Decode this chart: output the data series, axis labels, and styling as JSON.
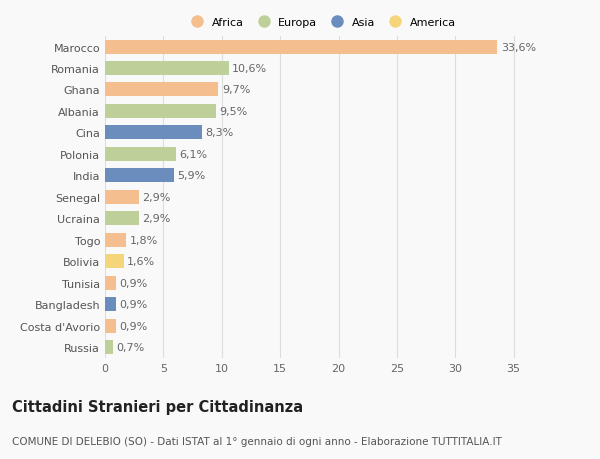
{
  "countries": [
    "Marocco",
    "Romania",
    "Ghana",
    "Albania",
    "Cina",
    "Polonia",
    "India",
    "Senegal",
    "Ucraina",
    "Togo",
    "Bolivia",
    "Tunisia",
    "Bangladesh",
    "Costa d'Avorio",
    "Russia"
  ],
  "values": [
    33.6,
    10.6,
    9.7,
    9.5,
    8.3,
    6.1,
    5.9,
    2.9,
    2.9,
    1.8,
    1.6,
    0.9,
    0.9,
    0.9,
    0.7
  ],
  "labels": [
    "33,6%",
    "10,6%",
    "9,7%",
    "9,5%",
    "8,3%",
    "6,1%",
    "5,9%",
    "2,9%",
    "2,9%",
    "1,8%",
    "1,6%",
    "0,9%",
    "0,9%",
    "0,9%",
    "0,7%"
  ],
  "continents": [
    "Africa",
    "Europa",
    "Africa",
    "Europa",
    "Asia",
    "Europa",
    "Asia",
    "Africa",
    "Europa",
    "Africa",
    "America",
    "Africa",
    "Asia",
    "Africa",
    "Europa"
  ],
  "colors": {
    "Africa": "#F5BE8E",
    "Europa": "#BECF9A",
    "Asia": "#6B8DBE",
    "America": "#F5D57A"
  },
  "legend_order": [
    "Africa",
    "Europa",
    "Asia",
    "America"
  ],
  "legend_colors": [
    "#F5BE8E",
    "#BECF9A",
    "#6B8DBE",
    "#F5D57A"
  ],
  "xlim": [
    0,
    37
  ],
  "xticks": [
    0,
    5,
    10,
    15,
    20,
    25,
    30,
    35
  ],
  "title": "Cittadini Stranieri per Cittadinanza",
  "subtitle": "COMUNE DI DELEBIO (SO) - Dati ISTAT al 1° gennaio di ogni anno - Elaborazione TUTTITALIA.IT",
  "bg_color": "#f9f9f9",
  "grid_color": "#dddddd",
  "bar_height": 0.65,
  "label_fontsize": 8.0,
  "tick_fontsize": 8.0,
  "title_fontsize": 10.5,
  "subtitle_fontsize": 7.5
}
